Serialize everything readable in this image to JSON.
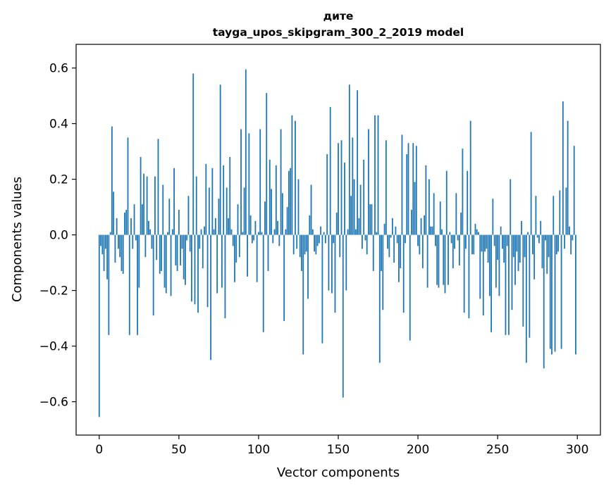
{
  "chart_data": {
    "type": "bar",
    "title": "дите",
    "subtitle": "tayga_upos_skipgram_300_2_2019 model",
    "xlabel": "Vector components",
    "ylabel": "Components values",
    "xlim": [
      -14.5,
      314.5
    ],
    "ylim": [
      -0.72,
      0.685
    ],
    "x_ticks": [
      0,
      50,
      100,
      150,
      200,
      250,
      300
    ],
    "x_tick_labels": [
      "0",
      "50",
      "100",
      "150",
      "200",
      "250",
      "300"
    ],
    "y_ticks": [
      -0.6,
      -0.4,
      -0.2,
      0.0,
      0.2,
      0.4,
      0.6
    ],
    "y_tick_labels": [
      "−0.6",
      "−0.4",
      "−0.2",
      "0.0",
      "0.2",
      "0.4",
      "0.6"
    ],
    "bar_color": "#1f77b4",
    "values": [
      -0.655,
      -0.04,
      -0.07,
      -0.13,
      -0.05,
      -0.16,
      -0.36,
      0.01,
      0.39,
      0.155,
      -0.1,
      0.06,
      -0.05,
      -0.08,
      -0.13,
      -0.14,
      0.08,
      0.09,
      0.35,
      -0.36,
      0.06,
      -0.05,
      0.11,
      -0.02,
      -0.36,
      -0.19,
      0.28,
      0.11,
      0.22,
      -0.08,
      0.21,
      0.05,
      0.02,
      -0.05,
      -0.29,
      0.21,
      -0.09,
      0.345,
      -0.14,
      -0.13,
      0.18,
      -0.19,
      -0.21,
      0.01,
      0.13,
      -0.22,
      0.02,
      0.24,
      -0.11,
      -0.13,
      0.09,
      -0.11,
      -0.05,
      -0.16,
      -0.18,
      -0.02,
      0.14,
      -0.06,
      -0.24,
      0.58,
      -0.25,
      0.21,
      -0.28,
      -0.05,
      0.02,
      -0.12,
      0.03,
      0.255,
      -0.26,
      0.17,
      -0.45,
      0.24,
      0.02,
      0.06,
      -0.21,
      0.13,
      0.54,
      -0.19,
      0.25,
      -0.3,
      0.17,
      0.06,
      0.28,
      0.02,
      -0.04,
      -0.17,
      -0.1,
      0.11,
      -0.08,
      0.38,
      0.01,
      0.17,
      0.595,
      -0.15,
      0.365,
      0.07,
      -0.03,
      -0.02,
      0.05,
      -0.17,
      0.01,
      0.38,
      0.01,
      -0.35,
      0.12,
      0.51,
      -0.13,
      0.27,
      0.165,
      -0.03,
      0.02,
      0.25,
      0.05,
      -0.04,
      0.38,
      0.15,
      -0.31,
      0.02,
      0.1,
      0.23,
      0.24,
      0.43,
      -0.07,
      0.41,
      -0.05,
      0.2,
      -0.08,
      -0.13,
      -0.43,
      -0.07,
      -0.06,
      -0.23,
      0.07,
      0.18,
      0.02,
      -0.06,
      -0.07,
      -0.04,
      -0.03,
      0.03,
      -0.39,
      0.01,
      -0.03,
      0.29,
      -0.2,
      0.46,
      -0.21,
      -0.03,
      -0.28,
      0.08,
      0.33,
      -0.08,
      0.34,
      -0.585,
      0.26,
      -0.2,
      0.02,
      0.54,
      0.14,
      0.35,
      0.2,
      0.02,
      0.52,
      0.06,
      0.18,
      -0.05,
      0.27,
      -0.02,
      -0.07,
      0.38,
      0.11,
      0.11,
      -0.13,
      0.43,
      0.01,
      0.43,
      -0.46,
      -0.13,
      -0.27,
      0.04,
      0.34,
      -0.05,
      -0.08,
      -0.01,
      0.06,
      -0.1,
      0.03,
      -0.03,
      -0.17,
      -0.12,
      0.36,
      -0.28,
      -0.03,
      0.29,
      0.33,
      -0.38,
      0.09,
      0.33,
      0.19,
      0.32,
      -0.04,
      -0.07,
      0.06,
      -0.12,
      0.07,
      0.25,
      -0.19,
      0.2,
      0.03,
      0.03,
      0.15,
      -0.04,
      -0.18,
      -0.19,
      0.12,
      0.02,
      -0.18,
      -0.21,
      0.23,
      -0.18,
      0.01,
      -0.03,
      -0.12,
      -0.05,
      0.15,
      -0.02,
      -0.11,
      0.08,
      0.31,
      -0.28,
      -0.05,
      0.23,
      -0.3,
      0.41,
      -0.07,
      -0.07,
      0.04,
      0.02,
      0.01,
      -0.23,
      -0.06,
      -0.29,
      -0.06,
      -0.05,
      -0.1,
      -0.22,
      -0.35,
      0.13,
      -0.04,
      -0.19,
      -0.09,
      -0.22,
      0.03,
      -0.05,
      -0.1,
      -0.36,
      -0.04,
      -0.36,
      0.2,
      -0.27,
      -0.08,
      -0.18,
      -0.06,
      -0.13,
      -0.1,
      0.05,
      -0.33,
      -0.08,
      -0.46,
      0.01,
      -0.37,
      0.37,
      -0.07,
      -0.16,
      0.14,
      -0.01,
      -0.03,
      0.05,
      -0.12,
      -0.48,
      -0.02,
      -0.14,
      -0.08,
      -0.41,
      -0.43,
      0.14,
      -0.42,
      -0.07,
      -0.06,
      0.16,
      -0.41,
      0.48,
      -0.05,
      0.17,
      0.41,
      0.03,
      -0.07,
      -0.02,
      0.32,
      -0.43
    ]
  }
}
